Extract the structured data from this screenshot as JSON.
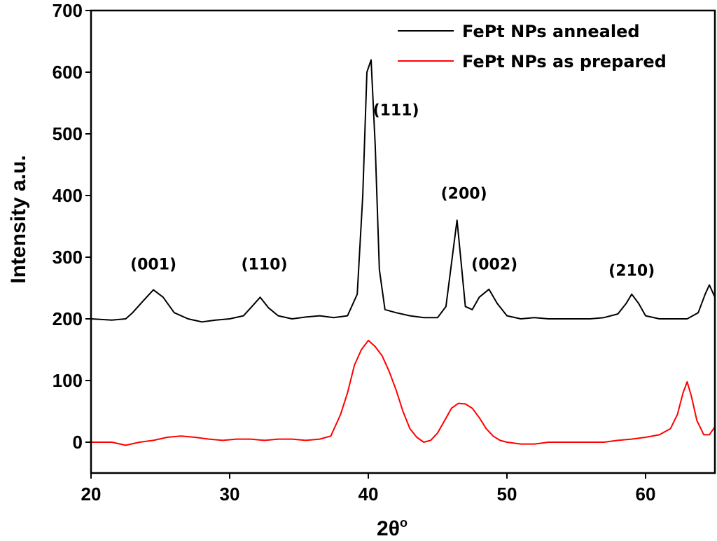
{
  "chart_data": {
    "type": "line",
    "xlabel": "2θ",
    "xlabel_superscript": "o",
    "ylabel": "Intensity a.u.",
    "xlim": [
      20,
      65
    ],
    "ylim": [
      -50,
      700
    ],
    "xticks": [
      20,
      30,
      40,
      50,
      60
    ],
    "yticks": [
      0,
      100,
      200,
      300,
      400,
      500,
      600,
      700
    ],
    "grid": false,
    "legend_position": "top-right",
    "series": [
      {
        "name": "FePt NPs annealed",
        "color": "#000000",
        "x": [
          20.0,
          21.5,
          22.5,
          23.0,
          23.8,
          24.5,
          25.2,
          26.0,
          27.0,
          28.0,
          29.0,
          30.0,
          31.0,
          31.6,
          32.2,
          32.8,
          33.5,
          34.5,
          35.5,
          36.5,
          37.5,
          38.5,
          39.2,
          39.6,
          39.9,
          40.2,
          40.5,
          40.8,
          41.2,
          42.0,
          43.0,
          44.0,
          45.0,
          45.6,
          46.0,
          46.4,
          46.7,
          47.0,
          47.5,
          48.0,
          48.7,
          49.3,
          50.0,
          51.0,
          52.0,
          53.0,
          54.0,
          55.0,
          56.0,
          57.0,
          58.0,
          58.6,
          59.0,
          59.5,
          60.0,
          61.0,
          62.0,
          63.0,
          63.8,
          64.3,
          64.6,
          65.0
        ],
        "y": [
          200,
          198,
          200,
          210,
          230,
          247,
          235,
          210,
          200,
          195,
          198,
          200,
          205,
          220,
          235,
          218,
          205,
          200,
          203,
          205,
          202,
          205,
          240,
          400,
          600,
          620,
          480,
          280,
          215,
          210,
          205,
          202,
          202,
          220,
          290,
          360,
          290,
          220,
          215,
          235,
          248,
          225,
          205,
          200,
          202,
          200,
          200,
          200,
          200,
          202,
          208,
          225,
          240,
          225,
          205,
          200,
          200,
          200,
          210,
          240,
          255,
          235
        ]
      },
      {
        "name": "FePt NPs as prepared",
        "color": "#ff0000",
        "x": [
          20.0,
          21.5,
          22.5,
          23.5,
          24.5,
          25.5,
          26.5,
          27.5,
          28.5,
          29.5,
          30.5,
          31.5,
          32.5,
          33.5,
          34.5,
          35.5,
          36.5,
          37.3,
          38.0,
          38.5,
          39.0,
          39.5,
          40.0,
          40.5,
          41.0,
          41.5,
          42.0,
          42.5,
          43.0,
          43.5,
          44.0,
          44.5,
          45.0,
          45.5,
          46.0,
          46.5,
          47.0,
          47.5,
          48.0,
          48.5,
          49.0,
          49.5,
          50.0,
          51.0,
          52.0,
          53.0,
          54.0,
          55.0,
          56.0,
          57.0,
          58.0,
          59.0,
          60.0,
          61.0,
          61.8,
          62.3,
          62.7,
          63.0,
          63.3,
          63.7,
          64.2,
          64.6,
          65.0
        ],
        "y": [
          0,
          0,
          -5,
          0,
          3,
          8,
          10,
          8,
          5,
          3,
          5,
          5,
          3,
          5,
          5,
          3,
          5,
          10,
          45,
          80,
          125,
          150,
          165,
          155,
          140,
          115,
          85,
          50,
          22,
          8,
          0,
          3,
          15,
          35,
          55,
          63,
          62,
          55,
          40,
          22,
          10,
          3,
          0,
          -3,
          -3,
          0,
          0,
          0,
          0,
          0,
          3,
          5,
          8,
          12,
          22,
          45,
          80,
          98,
          75,
          35,
          12,
          12,
          25
        ]
      }
    ],
    "annotations": [
      {
        "text": "(001)",
        "x": 24.5,
        "y": 280
      },
      {
        "text": "(110)",
        "x": 32.5,
        "y": 280
      },
      {
        "text": "(111)",
        "x": 42.0,
        "y": 530
      },
      {
        "text": "(200)",
        "x": 46.9,
        "y": 395
      },
      {
        "text": "(002)",
        "x": 49.1,
        "y": 280
      },
      {
        "text": "(210)",
        "x": 59.0,
        "y": 270
      }
    ]
  }
}
